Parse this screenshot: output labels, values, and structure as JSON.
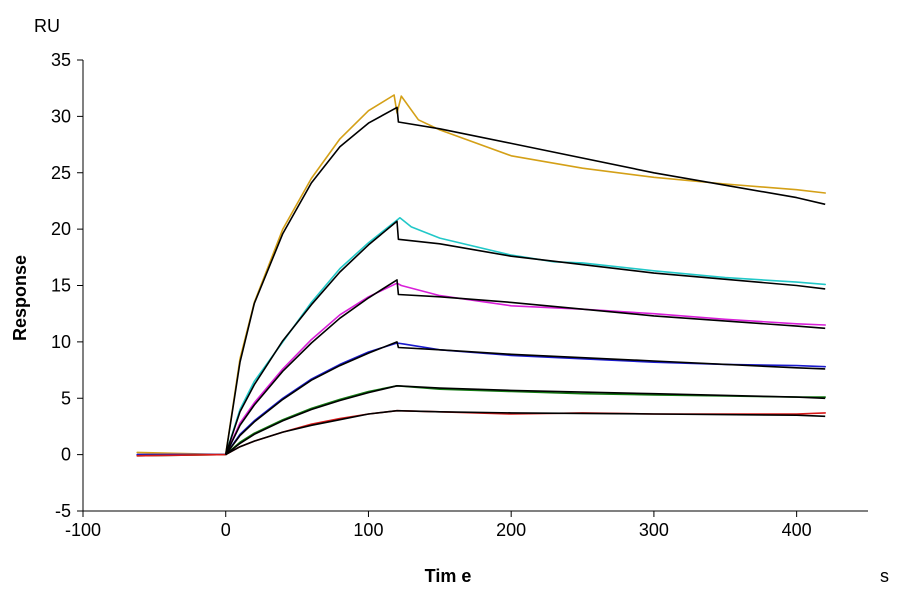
{
  "chart_data": {
    "type": "line",
    "title": "",
    "xlabel": "Tim e",
    "ylabel": "Response",
    "x_unit": "s",
    "y_unit": "RU",
    "xlim": [
      -100,
      450
    ],
    "ylim": [
      -5,
      35
    ],
    "x_ticks": [
      -100,
      0,
      100,
      200,
      300,
      400
    ],
    "y_ticks": [
      -5,
      0,
      5,
      10,
      15,
      20,
      25,
      30,
      35
    ],
    "grid": false,
    "legend": "none",
    "colors": {
      "axis": "#000000",
      "fit": "#000000",
      "series": [
        "#D4A017",
        "#22C8C8",
        "#D81FD8",
        "#1A1ACC",
        "#137A13",
        "#D81818"
      ]
    },
    "series": [
      {
        "color": "#D4A017",
        "values": [
          [
            -62,
            0.2
          ],
          [
            0,
            0
          ],
          [
            10,
            8.5
          ],
          [
            20,
            13.5
          ],
          [
            40,
            20
          ],
          [
            60,
            24.5
          ],
          [
            80,
            28
          ],
          [
            100,
            30.5
          ],
          [
            118,
            31.9
          ],
          [
            120,
            30.3
          ],
          [
            123,
            31.8
          ],
          [
            135,
            29.7
          ],
          [
            150,
            28.8
          ],
          [
            200,
            26.5
          ],
          [
            250,
            25.4
          ],
          [
            300,
            24.6
          ],
          [
            350,
            24
          ],
          [
            400,
            23.5
          ],
          [
            420,
            23.2
          ]
        ]
      },
      {
        "color": "#22C8C8",
        "values": [
          [
            -62,
            0
          ],
          [
            0,
            0
          ],
          [
            10,
            4
          ],
          [
            20,
            6.5
          ],
          [
            40,
            10
          ],
          [
            60,
            13.5
          ],
          [
            80,
            16.5
          ],
          [
            100,
            18.8
          ],
          [
            120,
            20.8
          ],
          [
            122,
            21
          ],
          [
            130,
            20.2
          ],
          [
            150,
            19.2
          ],
          [
            200,
            17.7
          ],
          [
            230,
            17.1
          ],
          [
            250,
            17
          ],
          [
            300,
            16.3
          ],
          [
            350,
            15.7
          ],
          [
            400,
            15.3
          ],
          [
            420,
            15.1
          ]
        ]
      },
      {
        "color": "#D81FD8",
        "values": [
          [
            -62,
            0
          ],
          [
            0,
            0
          ],
          [
            10,
            2.8
          ],
          [
            20,
            4.6
          ],
          [
            40,
            7.6
          ],
          [
            60,
            10.2
          ],
          [
            80,
            12.4
          ],
          [
            100,
            14
          ],
          [
            120,
            15.2
          ],
          [
            123,
            15
          ],
          [
            135,
            14.6
          ],
          [
            150,
            14.1
          ],
          [
            200,
            13.2
          ],
          [
            250,
            12.9
          ],
          [
            300,
            12.5
          ],
          [
            350,
            12
          ],
          [
            400,
            11.6
          ],
          [
            420,
            11.5
          ]
        ]
      },
      {
        "color": "#1A1ACC",
        "values": [
          [
            -62,
            0
          ],
          [
            0,
            0
          ],
          [
            10,
            1.8
          ],
          [
            20,
            3
          ],
          [
            40,
            5
          ],
          [
            60,
            6.7
          ],
          [
            80,
            8
          ],
          [
            100,
            9.1
          ],
          [
            120,
            9.9
          ],
          [
            125,
            9.8
          ],
          [
            150,
            9.3
          ],
          [
            200,
            8.8
          ],
          [
            250,
            8.5
          ],
          [
            300,
            8.2
          ],
          [
            350,
            8
          ],
          [
            400,
            7.9
          ],
          [
            420,
            7.8
          ]
        ]
      },
      {
        "color": "#137A13",
        "values": [
          [
            -62,
            -0.1
          ],
          [
            0,
            0
          ],
          [
            10,
            1.1
          ],
          [
            20,
            1.9
          ],
          [
            40,
            3.1
          ],
          [
            60,
            4.1
          ],
          [
            80,
            4.9
          ],
          [
            100,
            5.6
          ],
          [
            120,
            6.1
          ],
          [
            150,
            5.8
          ],
          [
            200,
            5.6
          ],
          [
            250,
            5.4
          ],
          [
            300,
            5.3
          ],
          [
            350,
            5.2
          ],
          [
            400,
            5.1
          ],
          [
            420,
            5.1
          ]
        ]
      },
      {
        "color": "#D81818",
        "values": [
          [
            -62,
            -0.1
          ],
          [
            0,
            0
          ],
          [
            10,
            0.7
          ],
          [
            20,
            1.2
          ],
          [
            40,
            2
          ],
          [
            60,
            2.7
          ],
          [
            80,
            3.2
          ],
          [
            100,
            3.6
          ],
          [
            120,
            3.9
          ],
          [
            150,
            3.8
          ],
          [
            200,
            3.6
          ],
          [
            250,
            3.7
          ],
          [
            300,
            3.6
          ],
          [
            350,
            3.6
          ],
          [
            400,
            3.6
          ],
          [
            420,
            3.7
          ]
        ]
      }
    ],
    "fits": [
      {
        "values": [
          [
            0,
            0
          ],
          [
            10,
            8.2
          ],
          [
            20,
            13.4
          ],
          [
            40,
            19.6
          ],
          [
            60,
            24.1
          ],
          [
            80,
            27.3
          ],
          [
            100,
            29.4
          ],
          [
            120,
            30.8
          ],
          [
            121,
            29.5
          ],
          [
            150,
            28.9
          ],
          [
            200,
            27.6
          ],
          [
            300,
            25
          ],
          [
            400,
            22.8
          ],
          [
            420,
            22.2
          ]
        ]
      },
      {
        "values": [
          [
            0,
            0
          ],
          [
            10,
            3.8
          ],
          [
            20,
            6.2
          ],
          [
            40,
            10.1
          ],
          [
            60,
            13.3
          ],
          [
            80,
            16.2
          ],
          [
            100,
            18.6
          ],
          [
            120,
            20.7
          ],
          [
            121,
            19.1
          ],
          [
            150,
            18.7
          ],
          [
            200,
            17.6
          ],
          [
            300,
            16.1
          ],
          [
            400,
            15
          ],
          [
            420,
            14.7
          ]
        ]
      },
      {
        "values": [
          [
            0,
            0
          ],
          [
            10,
            2.6
          ],
          [
            20,
            4.4
          ],
          [
            40,
            7.4
          ],
          [
            60,
            9.9
          ],
          [
            80,
            12.1
          ],
          [
            100,
            13.9
          ],
          [
            120,
            15.5
          ],
          [
            121,
            14.2
          ],
          [
            150,
            14
          ],
          [
            200,
            13.5
          ],
          [
            300,
            12.3
          ],
          [
            400,
            11.4
          ],
          [
            420,
            11.2
          ]
        ]
      },
      {
        "values": [
          [
            0,
            0
          ],
          [
            10,
            1.7
          ],
          [
            20,
            2.9
          ],
          [
            40,
            4.9
          ],
          [
            60,
            6.6
          ],
          [
            80,
            7.9
          ],
          [
            100,
            9
          ],
          [
            120,
            10
          ],
          [
            121,
            9.5
          ],
          [
            150,
            9.3
          ],
          [
            200,
            8.9
          ],
          [
            300,
            8.3
          ],
          [
            400,
            7.7
          ],
          [
            420,
            7.6
          ]
        ]
      },
      {
        "values": [
          [
            0,
            0
          ],
          [
            10,
            1
          ],
          [
            20,
            1.8
          ],
          [
            40,
            3
          ],
          [
            60,
            4
          ],
          [
            80,
            4.8
          ],
          [
            100,
            5.5
          ],
          [
            120,
            6.1
          ],
          [
            150,
            5.9
          ],
          [
            200,
            5.7
          ],
          [
            300,
            5.4
          ],
          [
            400,
            5.1
          ],
          [
            420,
            5
          ]
        ]
      },
      {
        "values": [
          [
            0,
            0
          ],
          [
            10,
            0.7
          ],
          [
            20,
            1.2
          ],
          [
            40,
            2
          ],
          [
            60,
            2.6
          ],
          [
            80,
            3.1
          ],
          [
            100,
            3.6
          ],
          [
            120,
            3.9
          ],
          [
            150,
            3.8
          ],
          [
            200,
            3.7
          ],
          [
            300,
            3.6
          ],
          [
            400,
            3.5
          ],
          [
            420,
            3.4
          ]
        ]
      }
    ]
  }
}
